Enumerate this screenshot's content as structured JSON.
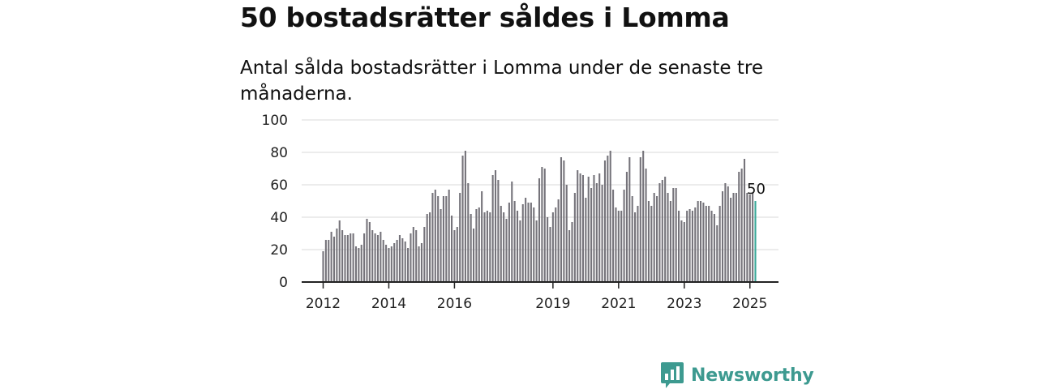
{
  "header": {
    "title": "50 bostadsrätter såldes i Lomma",
    "subtitle": "Antal sålda bostadsrätter i Lomma under de senaste tre månaderna."
  },
  "brand": {
    "name": "Newsworthy",
    "logo_icon": "newsworthy-bar-chart-icon",
    "color": "#3d9a90"
  },
  "chart_data": {
    "type": "bar",
    "title": "",
    "xlabel": "",
    "ylabel": "",
    "ylim": [
      0,
      100
    ],
    "y_ticks": [
      "0",
      "20",
      "40",
      "60",
      "80",
      "100"
    ],
    "x_tick_labels": [
      "2012",
      "2014",
      "2016",
      "2019",
      "2021",
      "2023",
      "2025"
    ],
    "grid": "horizontal",
    "bar_color": "#75737a",
    "highlight_color": "#3aa898",
    "last_value_label": "50",
    "series": [
      {
        "start": "2012-01",
        "values": [
          19,
          26,
          26,
          31,
          28,
          33,
          38,
          32,
          29,
          29,
          30,
          30,
          22,
          21,
          23,
          30,
          39,
          37,
          32,
          30,
          29,
          31,
          26,
          23,
          21,
          22,
          24,
          26,
          29,
          27,
          25,
          21,
          30,
          34,
          32,
          22,
          24,
          34,
          42,
          43,
          55,
          57,
          53,
          45,
          53,
          53,
          57,
          41,
          32,
          34,
          55,
          78,
          81,
          61,
          42,
          33,
          45,
          46,
          56,
          43,
          44,
          43,
          66,
          69,
          63,
          47,
          43,
          39,
          49,
          62,
          50,
          44,
          38,
          48,
          52,
          49,
          49,
          46,
          38,
          64,
          71,
          70,
          40,
          34,
          43,
          46,
          51,
          77,
          75,
          60,
          32,
          37,
          55,
          69,
          67,
          66,
          52,
          65,
          58,
          66,
          61,
          67,
          60,
          75,
          78,
          81,
          57,
          46,
          44,
          44,
          57,
          68,
          77,
          53,
          43,
          47,
          77,
          81,
          70,
          50,
          47,
          55,
          53,
          61,
          63,
          65,
          55,
          50,
          58,
          58,
          44,
          38,
          37,
          44,
          45,
          44,
          46,
          50,
          50,
          49,
          47,
          47,
          44,
          42,
          35,
          47,
          56,
          61,
          59,
          52,
          55,
          55,
          68,
          70,
          76,
          55,
          54,
          55,
          50
        ]
      }
    ]
  }
}
